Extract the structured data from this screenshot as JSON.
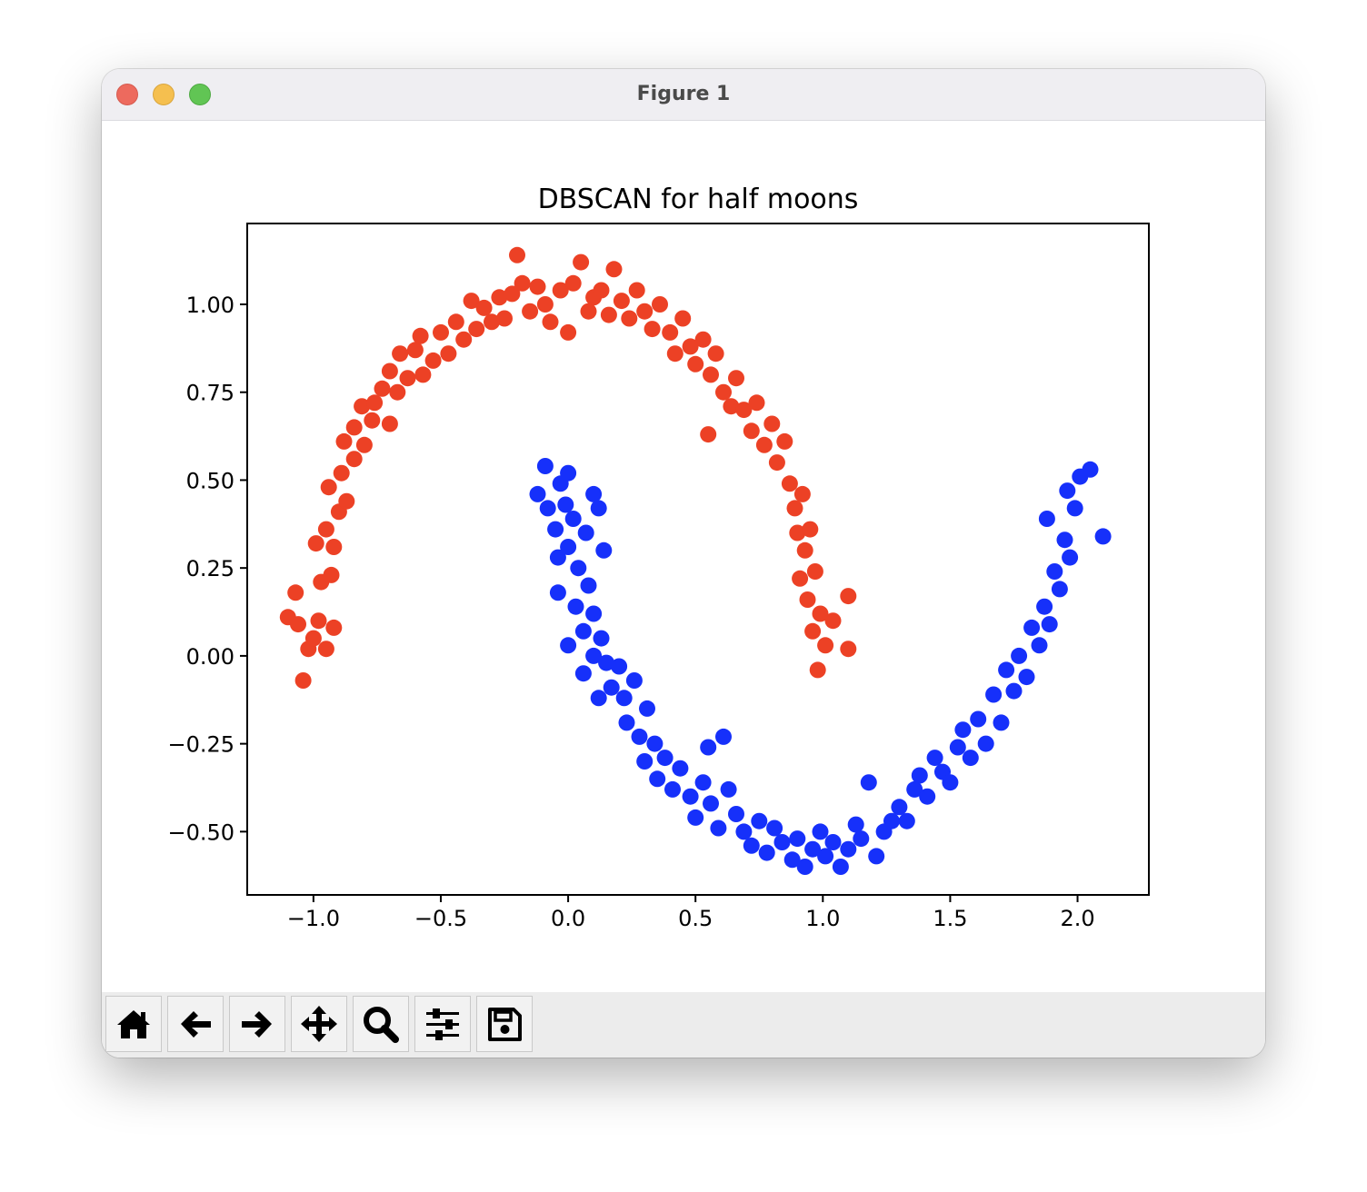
{
  "window": {
    "title": "Figure 1"
  },
  "toolbar": {
    "buttons": [
      {
        "name": "home",
        "icon": "home-icon"
      },
      {
        "name": "back",
        "icon": "arrow-left-icon"
      },
      {
        "name": "forward",
        "icon": "arrow-right-icon"
      },
      {
        "name": "pan",
        "icon": "move-icon"
      },
      {
        "name": "zoom",
        "icon": "magnifier-icon"
      },
      {
        "name": "configure-subplots",
        "icon": "sliders-icon"
      },
      {
        "name": "save",
        "icon": "floppy-disk-icon"
      }
    ]
  },
  "chart_data": {
    "type": "scatter",
    "title": "DBSCAN for half moons",
    "xlabel": "",
    "ylabel": "",
    "xlim": [
      -1.26,
      2.28
    ],
    "ylim": [
      -0.68,
      1.23
    ],
    "xticks": [
      -1.0,
      -0.5,
      0.0,
      0.5,
      1.0,
      1.5,
      2.0
    ],
    "xtick_labels": [
      "−1.0",
      "−0.5",
      "0.0",
      "0.5",
      "1.0",
      "1.5",
      "2.0"
    ],
    "yticks": [
      1.0,
      0.75,
      0.5,
      0.25,
      0.0,
      -0.25,
      -0.5
    ],
    "ytick_labels": [
      "1.00",
      "0.75",
      "0.50",
      "0.25",
      "0.00",
      "−0.25",
      "−0.50"
    ],
    "grid": false,
    "legend": "none",
    "series": [
      {
        "color": "#ec4125",
        "points": [
          [
            -1.07,
            0.18
          ],
          [
            -1.1,
            0.11
          ],
          [
            -1.06,
            0.09
          ],
          [
            -1.04,
            -0.07
          ],
          [
            -1.02,
            0.02
          ],
          [
            -1.0,
            0.05
          ],
          [
            -0.98,
            0.1
          ],
          [
            -0.95,
            0.02
          ],
          [
            -0.92,
            0.08
          ],
          [
            -0.97,
            0.21
          ],
          [
            -0.93,
            0.23
          ],
          [
            -0.99,
            0.32
          ],
          [
            -0.95,
            0.36
          ],
          [
            -0.92,
            0.31
          ],
          [
            -0.9,
            0.41
          ],
          [
            -0.94,
            0.48
          ],
          [
            -0.89,
            0.52
          ],
          [
            -0.87,
            0.44
          ],
          [
            -0.84,
            0.56
          ],
          [
            -0.88,
            0.61
          ],
          [
            -0.84,
            0.65
          ],
          [
            -0.8,
            0.6
          ],
          [
            -0.77,
            0.67
          ],
          [
            -0.81,
            0.71
          ],
          [
            -0.76,
            0.72
          ],
          [
            -0.73,
            0.76
          ],
          [
            -0.7,
            0.66
          ],
          [
            -0.7,
            0.81
          ],
          [
            -0.66,
            0.86
          ],
          [
            -0.67,
            0.75
          ],
          [
            -0.63,
            0.79
          ],
          [
            -0.6,
            0.87
          ],
          [
            -0.58,
            0.91
          ],
          [
            -0.57,
            0.8
          ],
          [
            -0.53,
            0.84
          ],
          [
            -0.5,
            0.92
          ],
          [
            -0.47,
            0.86
          ],
          [
            -0.44,
            0.95
          ],
          [
            -0.41,
            0.9
          ],
          [
            -0.38,
            1.01
          ],
          [
            -0.36,
            0.93
          ],
          [
            -0.33,
            0.99
          ],
          [
            -0.3,
            0.95
          ],
          [
            -0.27,
            1.02
          ],
          [
            -0.25,
            0.96
          ],
          [
            -0.22,
            1.03
          ],
          [
            -0.2,
            1.14
          ],
          [
            -0.18,
            1.06
          ],
          [
            -0.15,
            0.98
          ],
          [
            -0.12,
            1.05
          ],
          [
            -0.09,
            1.0
          ],
          [
            -0.07,
            0.95
          ],
          [
            -0.03,
            1.04
          ],
          [
            0.0,
            0.92
          ],
          [
            0.02,
            1.06
          ],
          [
            0.05,
            1.12
          ],
          [
            0.08,
            0.98
          ],
          [
            0.1,
            1.02
          ],
          [
            0.13,
            1.04
          ],
          [
            0.16,
            0.97
          ],
          [
            0.18,
            1.1
          ],
          [
            0.21,
            1.01
          ],
          [
            0.24,
            0.96
          ],
          [
            0.27,
            1.04
          ],
          [
            0.3,
            0.98
          ],
          [
            0.33,
            0.93
          ],
          [
            0.36,
            1.0
          ],
          [
            0.4,
            0.92
          ],
          [
            0.42,
            0.86
          ],
          [
            0.45,
            0.96
          ],
          [
            0.48,
            0.88
          ],
          [
            0.5,
            0.83
          ],
          [
            0.53,
            0.9
          ],
          [
            0.56,
            0.8
          ],
          [
            0.58,
            0.86
          ],
          [
            0.61,
            0.75
          ],
          [
            0.64,
            0.71
          ],
          [
            0.66,
            0.79
          ],
          [
            0.69,
            0.7
          ],
          [
            0.72,
            0.64
          ],
          [
            0.74,
            0.72
          ],
          [
            0.77,
            0.6
          ],
          [
            0.8,
            0.66
          ],
          [
            0.82,
            0.55
          ],
          [
            0.85,
            0.61
          ],
          [
            0.87,
            0.49
          ],
          [
            0.89,
            0.42
          ],
          [
            0.92,
            0.46
          ],
          [
            0.9,
            0.35
          ],
          [
            0.93,
            0.3
          ],
          [
            0.95,
            0.36
          ],
          [
            0.91,
            0.22
          ],
          [
            0.94,
            0.16
          ],
          [
            0.97,
            0.24
          ],
          [
            0.96,
            0.07
          ],
          [
            0.99,
            0.12
          ],
          [
            1.01,
            0.03
          ],
          [
            0.98,
            -0.04
          ],
          [
            1.04,
            0.1
          ],
          [
            1.1,
            0.17
          ],
          [
            1.1,
            0.02
          ],
          [
            0.55,
            0.63
          ]
        ]
      },
      {
        "color": "#1630fa",
        "points": [
          [
            -0.09,
            0.54
          ],
          [
            -0.12,
            0.46
          ],
          [
            -0.08,
            0.42
          ],
          [
            -0.05,
            0.36
          ],
          [
            -0.03,
            0.49
          ],
          [
            0.0,
            0.52
          ],
          [
            -0.01,
            0.43
          ],
          [
            0.02,
            0.39
          ],
          [
            -0.04,
            0.28
          ],
          [
            0.0,
            0.31
          ],
          [
            0.04,
            0.25
          ],
          [
            0.1,
            0.46
          ],
          [
            0.12,
            0.42
          ],
          [
            0.07,
            0.35
          ],
          [
            0.14,
            0.3
          ],
          [
            0.08,
            0.2
          ],
          [
            -0.04,
            0.18
          ],
          [
            0.0,
            0.03
          ],
          [
            0.03,
            0.14
          ],
          [
            0.06,
            0.07
          ],
          [
            0.1,
            0.12
          ],
          [
            0.06,
            -0.05
          ],
          [
            0.1,
            0.0
          ],
          [
            0.13,
            0.05
          ],
          [
            0.15,
            -0.02
          ],
          [
            0.12,
            -0.12
          ],
          [
            0.17,
            -0.09
          ],
          [
            0.2,
            -0.03
          ],
          [
            0.22,
            -0.12
          ],
          [
            0.26,
            -0.07
          ],
          [
            0.23,
            -0.19
          ],
          [
            0.28,
            -0.23
          ],
          [
            0.31,
            -0.15
          ],
          [
            0.34,
            -0.25
          ],
          [
            0.3,
            -0.3
          ],
          [
            0.35,
            -0.35
          ],
          [
            0.38,
            -0.29
          ],
          [
            0.41,
            -0.38
          ],
          [
            0.44,
            -0.32
          ],
          [
            0.48,
            -0.4
          ],
          [
            0.5,
            -0.46
          ],
          [
            0.53,
            -0.36
          ],
          [
            0.56,
            -0.42
          ],
          [
            0.59,
            -0.49
          ],
          [
            0.55,
            -0.26
          ],
          [
            0.61,
            -0.23
          ],
          [
            0.63,
            -0.38
          ],
          [
            0.66,
            -0.45
          ],
          [
            0.69,
            -0.5
          ],
          [
            0.72,
            -0.54
          ],
          [
            0.75,
            -0.47
          ],
          [
            0.78,
            -0.56
          ],
          [
            0.81,
            -0.49
          ],
          [
            0.84,
            -0.53
          ],
          [
            0.88,
            -0.58
          ],
          [
            0.9,
            -0.52
          ],
          [
            0.93,
            -0.6
          ],
          [
            0.96,
            -0.55
          ],
          [
            0.99,
            -0.5
          ],
          [
            1.01,
            -0.57
          ],
          [
            1.04,
            -0.53
          ],
          [
            1.07,
            -0.6
          ],
          [
            1.1,
            -0.55
          ],
          [
            1.13,
            -0.48
          ],
          [
            1.15,
            -0.52
          ],
          [
            1.18,
            -0.36
          ],
          [
            1.21,
            -0.57
          ],
          [
            1.24,
            -0.5
          ],
          [
            1.27,
            -0.47
          ],
          [
            1.3,
            -0.43
          ],
          [
            1.33,
            -0.47
          ],
          [
            1.36,
            -0.38
          ],
          [
            1.38,
            -0.34
          ],
          [
            1.41,
            -0.4
          ],
          [
            1.44,
            -0.29
          ],
          [
            1.47,
            -0.33
          ],
          [
            1.5,
            -0.36
          ],
          [
            1.53,
            -0.26
          ],
          [
            1.55,
            -0.21
          ],
          [
            1.58,
            -0.29
          ],
          [
            1.61,
            -0.18
          ],
          [
            1.64,
            -0.25
          ],
          [
            1.67,
            -0.11
          ],
          [
            1.7,
            -0.19
          ],
          [
            1.72,
            -0.04
          ],
          [
            1.75,
            -0.1
          ],
          [
            1.77,
            0.0
          ],
          [
            1.8,
            -0.06
          ],
          [
            1.82,
            0.08
          ],
          [
            1.85,
            0.03
          ],
          [
            1.87,
            0.14
          ],
          [
            1.89,
            0.09
          ],
          [
            1.91,
            0.24
          ],
          [
            1.93,
            0.19
          ],
          [
            1.95,
            0.33
          ],
          [
            1.97,
            0.28
          ],
          [
            1.99,
            0.42
          ],
          [
            1.96,
            0.47
          ],
          [
            2.01,
            0.51
          ],
          [
            2.05,
            0.53
          ],
          [
            2.1,
            0.34
          ],
          [
            1.88,
            0.39
          ]
        ]
      }
    ]
  }
}
